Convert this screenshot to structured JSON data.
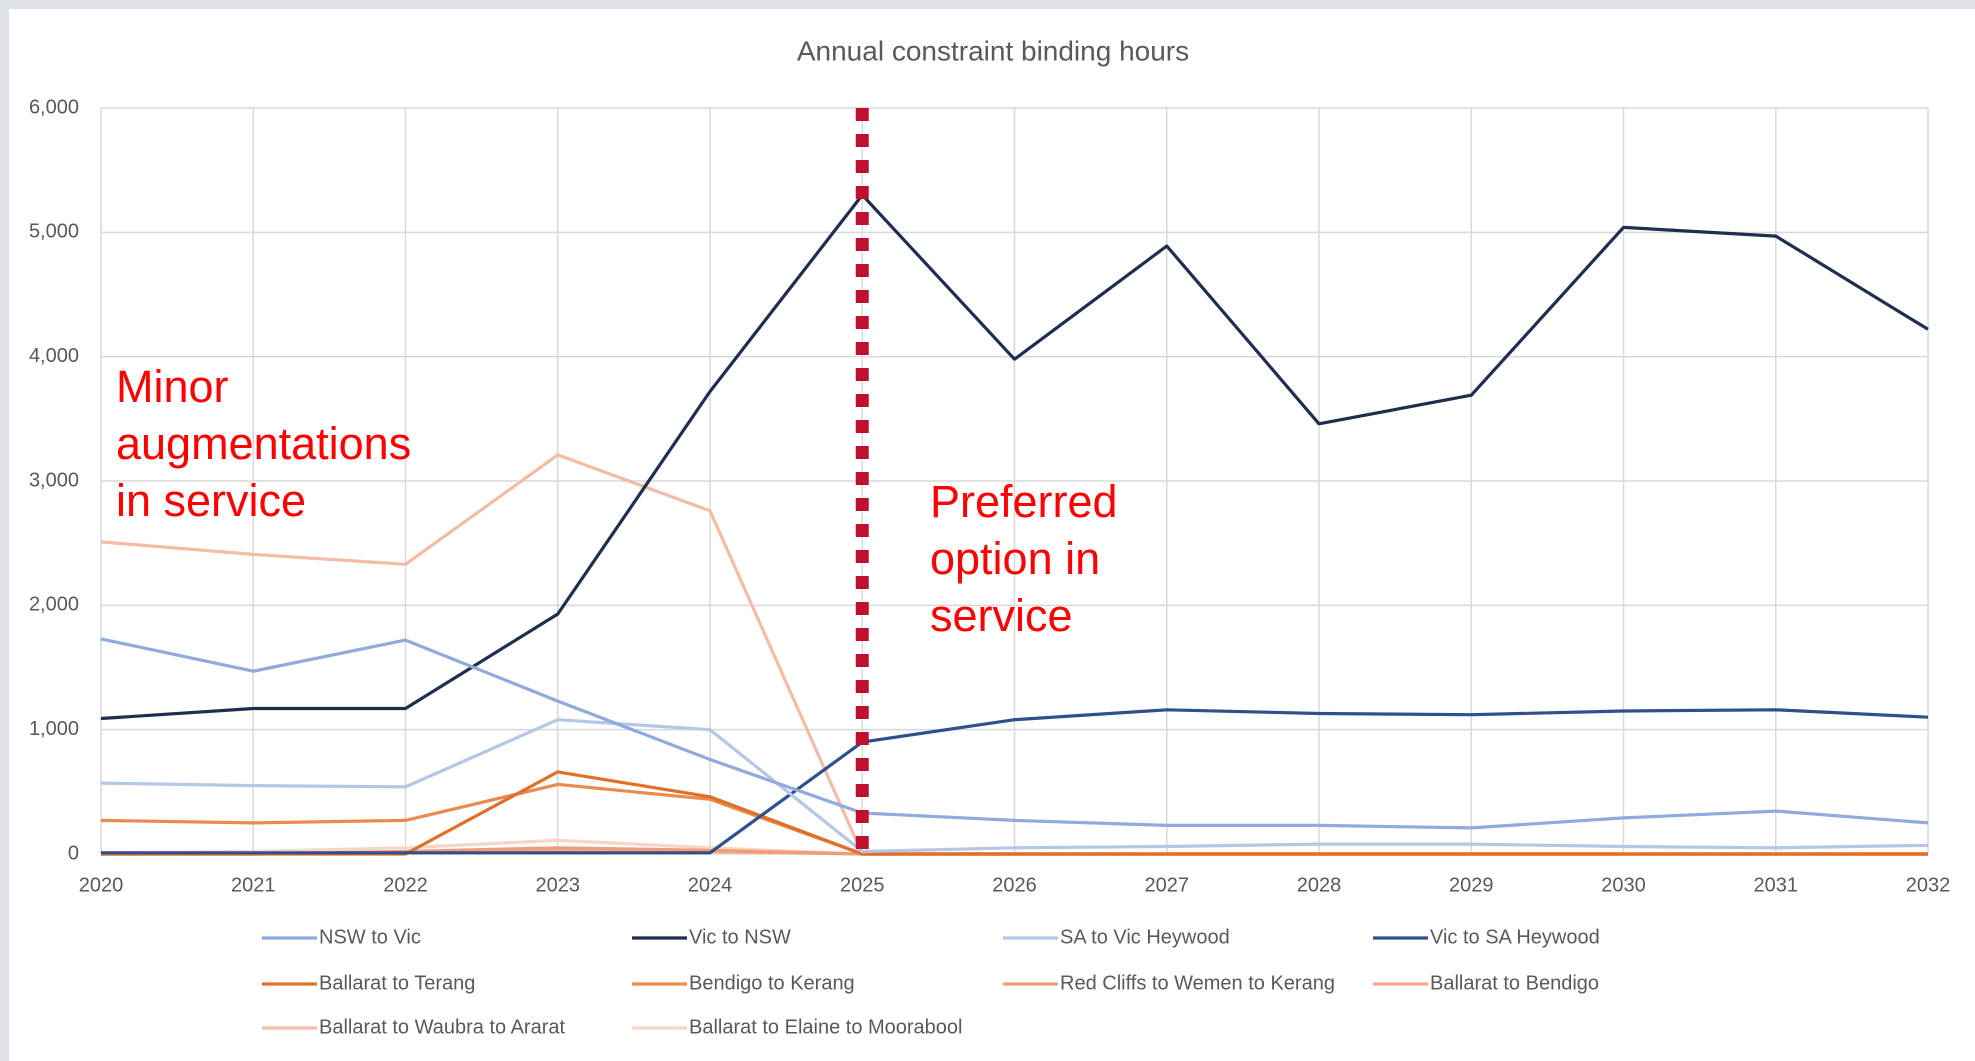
{
  "chart_data": {
    "type": "line",
    "title": "Annual constraint binding hours",
    "x": [
      2020,
      2021,
      2022,
      2023,
      2024,
      2025,
      2026,
      2027,
      2028,
      2029,
      2030,
      2031,
      2032
    ],
    "xlim": [
      2020,
      2032
    ],
    "xticks": [
      2020,
      2021,
      2022,
      2023,
      2024,
      2025,
      2026,
      2027,
      2028,
      2029,
      2030,
      2031,
      2032
    ],
    "ylim": [
      0,
      6000
    ],
    "yticks": [
      0,
      {
        "value": 1000,
        "label": "1,000"
      },
      {
        "value": 2000,
        "label": "2,000"
      },
      {
        "value": 3000,
        "label": "3,000"
      },
      {
        "value": 4000,
        "label": "4,000"
      },
      {
        "value": 5000,
        "label": "5,000"
      },
      {
        "value": 6000,
        "label": "6,000"
      }
    ],
    "grid": true,
    "legend": "bottom",
    "series": [
      {
        "name": "NSW to Vic",
        "color": "#8faadc",
        "values": [
          1730,
          1470,
          1720,
          1230,
          760,
          330,
          270,
          230,
          230,
          210,
          290,
          345,
          250
        ]
      },
      {
        "name": "Vic to NSW",
        "color": "#1f2d4e",
        "values": [
          1090,
          1170,
          1170,
          1930,
          3720,
          5300,
          3980,
          4890,
          3460,
          3690,
          5040,
          4970,
          4220
        ]
      },
      {
        "name": "SA to Vic Heywood",
        "color": "#b4c7e7",
        "values": [
          570,
          550,
          540,
          1080,
          1000,
          20,
          50,
          60,
          80,
          80,
          60,
          50,
          70
        ]
      },
      {
        "name": "Vic to SA Heywood",
        "color": "#2f4f8f",
        "values": [
          10,
          10,
          10,
          10,
          10,
          900,
          1080,
          1160,
          1130,
          1120,
          1150,
          1160,
          1100
        ]
      },
      {
        "name": "Ballarat to Terang",
        "color": "#e07028",
        "values": [
          0,
          0,
          0,
          660,
          460,
          0,
          0,
          0,
          0,
          0,
          0,
          0,
          0
        ]
      },
      {
        "name": "Bendigo to Kerang",
        "color": "#eb8a4e",
        "values": [
          270,
          250,
          270,
          560,
          440,
          0,
          0,
          0,
          0,
          0,
          0,
          0,
          0
        ]
      },
      {
        "name": "Red Cliffs to Wemen to Kerang",
        "color": "#ef9d78",
        "values": [
          0,
          0,
          20,
          50,
          30,
          0,
          0,
          0,
          0,
          0,
          0,
          0,
          0
        ]
      },
      {
        "name": "Ballarat to Bendigo",
        "color": "#f2aa8a",
        "values": [
          0,
          0,
          10,
          30,
          20,
          0,
          0,
          0,
          0,
          0,
          0,
          0,
          0
        ]
      },
      {
        "name": "Ballarat to Waubra to Ararat",
        "color": "#f4bba5",
        "values": [
          2510,
          2410,
          2330,
          3210,
          2760,
          0,
          0,
          0,
          0,
          0,
          0,
          0,
          0
        ]
      },
      {
        "name": "Ballarat to Elaine to Moorabool",
        "color": "#f9d5c8",
        "values": [
          10,
          20,
          50,
          110,
          50,
          0,
          0,
          0,
          0,
          0,
          0,
          0,
          0
        ]
      }
    ],
    "marker": {
      "x": 2025,
      "color": "#c0102f"
    },
    "annotations": [
      {
        "lines": [
          "Minor",
          "augmentations",
          "in service"
        ],
        "color": "#ff0000"
      },
      {
        "lines": [
          "Preferred",
          "option in",
          "service"
        ],
        "color": "#ff0000"
      }
    ]
  }
}
